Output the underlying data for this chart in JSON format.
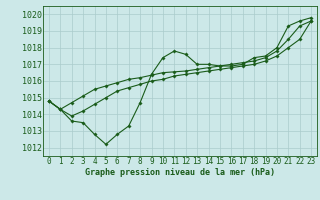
{
  "xlabel": "Graphe pression niveau de la mer (hPa)",
  "ylim": [
    1011.5,
    1020.5
  ],
  "xlim": [
    -0.5,
    23.5
  ],
  "yticks": [
    1012,
    1013,
    1014,
    1015,
    1016,
    1017,
    1018,
    1019,
    1020
  ],
  "xticks": [
    0,
    1,
    2,
    3,
    4,
    5,
    6,
    7,
    8,
    9,
    10,
    11,
    12,
    13,
    14,
    15,
    16,
    17,
    18,
    19,
    20,
    21,
    22,
    23
  ],
  "bg_color": "#cce8e8",
  "grid_color": "#aacccc",
  "line_color": "#1a5c1a",
  "line1": [
    1014.8,
    1014.3,
    1013.6,
    1013.5,
    1012.8,
    1012.2,
    1012.8,
    1013.3,
    1014.7,
    1016.4,
    1017.4,
    1017.8,
    1017.6,
    1017.0,
    1017.0,
    1016.9,
    1016.9,
    1017.0,
    1017.4,
    1017.5,
    1018.0,
    1019.3,
    1019.6,
    1019.8
  ],
  "line2": [
    1014.8,
    1014.3,
    1013.9,
    1014.2,
    1014.6,
    1015.0,
    1015.4,
    1015.6,
    1015.8,
    1016.0,
    1016.1,
    1016.3,
    1016.4,
    1016.5,
    1016.6,
    1016.7,
    1016.8,
    1016.9,
    1017.0,
    1017.2,
    1017.5,
    1018.0,
    1018.5,
    1019.6
  ],
  "line3": [
    1014.8,
    1014.3,
    1014.7,
    1015.1,
    1015.5,
    1015.7,
    1015.9,
    1016.1,
    1016.2,
    1016.35,
    1016.5,
    1016.55,
    1016.6,
    1016.7,
    1016.8,
    1016.9,
    1017.0,
    1017.1,
    1017.2,
    1017.4,
    1017.8,
    1018.5,
    1019.3,
    1019.6
  ],
  "xlabel_fontsize": 6.0,
  "ytick_fontsize": 6.0,
  "xtick_fontsize": 5.5,
  "marker_size": 1.8,
  "line_width": 0.8
}
